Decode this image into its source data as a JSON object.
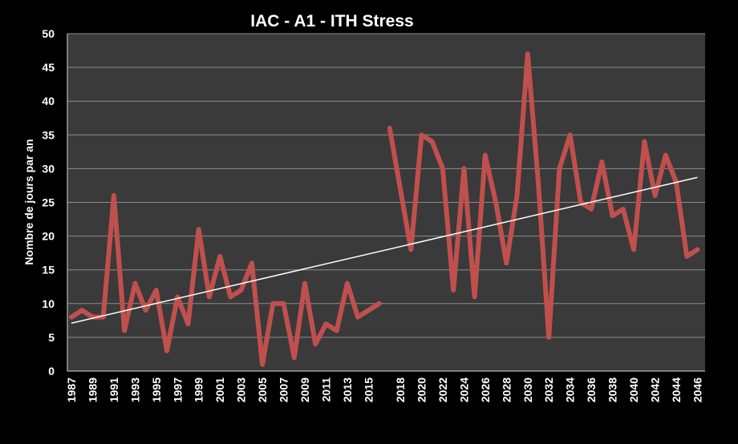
{
  "chart_data": {
    "type": "line",
    "title": "IAC - A1 - ITH Stress",
    "ylabel": "Nombre de jours par an",
    "xlabel": "",
    "ylim": [
      0,
      50
    ],
    "yticks": [
      0,
      5,
      10,
      15,
      20,
      25,
      30,
      35,
      40,
      45,
      50
    ],
    "x_tick_labels": [
      "1987",
      "1989",
      "1991",
      "1993",
      "1995",
      "1997",
      "1999",
      "2001",
      "2003",
      "2005",
      "2007",
      "2009",
      "2011",
      "2013",
      "2015",
      "2018",
      "2020",
      "2022",
      "2024",
      "2026",
      "2028",
      "2030",
      "2032",
      "2034",
      "2036",
      "2038",
      "2040",
      "2042",
      "2044",
      "2046"
    ],
    "grid": "horizontal",
    "colors": {
      "series": "#c0504d",
      "trend": "#ffffff",
      "plot_bg": "#3a3a3a",
      "page_bg": "#000000",
      "grid": "#8c8c8c"
    },
    "series": [
      {
        "segment": "historical",
        "x": [
          1987,
          1988,
          1989,
          1990,
          1991,
          1992,
          1993,
          1994,
          1995,
          1996,
          1997,
          1998,
          1999,
          2000,
          2001,
          2002,
          2003,
          2004,
          2005,
          2006,
          2007,
          2008,
          2009,
          2010,
          2011,
          2012,
          2013,
          2014,
          2015,
          2016
        ],
        "values": [
          8,
          9,
          8,
          8,
          26,
          6,
          13,
          9,
          12,
          3,
          11,
          7,
          21,
          11,
          17,
          11,
          12,
          16,
          1,
          10,
          10,
          2,
          13,
          4,
          7,
          6,
          13,
          8,
          9,
          10
        ]
      },
      {
        "segment": "projection",
        "x": [
          2017,
          2018,
          2019,
          2020,
          2021,
          2022,
          2023,
          2024,
          2025,
          2026,
          2027,
          2028,
          2029,
          2030,
          2031,
          2032,
          2033,
          2034,
          2035,
          2036,
          2037,
          2038,
          2039,
          2040,
          2041,
          2042,
          2043,
          2044,
          2045,
          2046
        ],
        "values": [
          36,
          27,
          18,
          35,
          34,
          30,
          12,
          30,
          11,
          32,
          25,
          16,
          26,
          47,
          28,
          5,
          30,
          35,
          25,
          24,
          31,
          23,
          24,
          18,
          34,
          26,
          32,
          28,
          17,
          18
        ]
      }
    ],
    "trendline": {
      "x": [
        1987,
        2046
      ],
      "values": [
        7.1,
        28.7
      ]
    }
  }
}
